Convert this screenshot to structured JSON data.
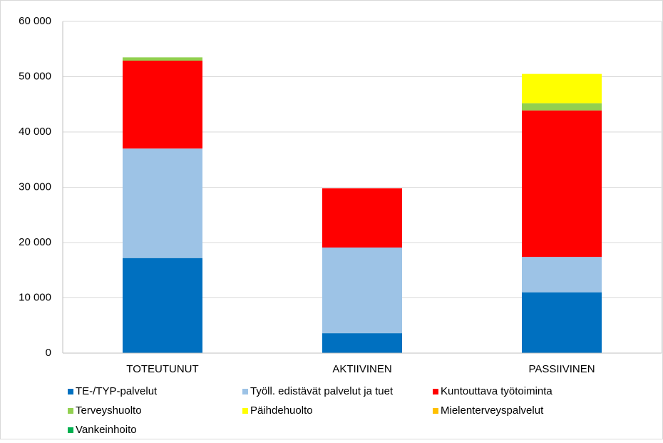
{
  "chart_data": {
    "type": "stacked_bar",
    "categories": [
      "TOTEUTUNUT",
      "AKTIIVINEN",
      "PASSIIVINEN"
    ],
    "series": [
      {
        "name": "TE-/TYP-palvelut",
        "color": "#0070c0",
        "values": [
          17200,
          3600,
          11000
        ]
      },
      {
        "name": "Työll. edistävät palvelut ja tuet",
        "color": "#9dc3e6",
        "values": [
          19800,
          15500,
          6400
        ]
      },
      {
        "name": "Kuntouttava työtoiminta",
        "color": "#ff0000",
        "values": [
          15900,
          10700,
          26500
        ]
      },
      {
        "name": "Terveyshuolto",
        "color": "#92d050",
        "values": [
          600,
          0,
          1300
        ]
      },
      {
        "name": "Päihdehuolto",
        "color": "#ffff00",
        "values": [
          0,
          0,
          5300
        ]
      },
      {
        "name": "Mielenterveyspalvelut",
        "color": "#ffc000",
        "values": [
          0,
          0,
          0
        ]
      },
      {
        "name": "Vankeinhoito",
        "color": "#00b050",
        "values": [
          0,
          0,
          0
        ]
      }
    ],
    "ylim": [
      0,
      60000
    ],
    "yticks": [
      0,
      {
        "value": 10000,
        "label": "10 000"
      },
      {
        "value": 20000,
        "label": "20 000"
      },
      {
        "value": 30000,
        "label": "30 000"
      },
      {
        "value": 40000,
        "label": "40 000"
      },
      {
        "value": 50000,
        "label": "50 000"
      },
      {
        "value": 60000,
        "label": "60 000"
      }
    ],
    "grid": true
  }
}
